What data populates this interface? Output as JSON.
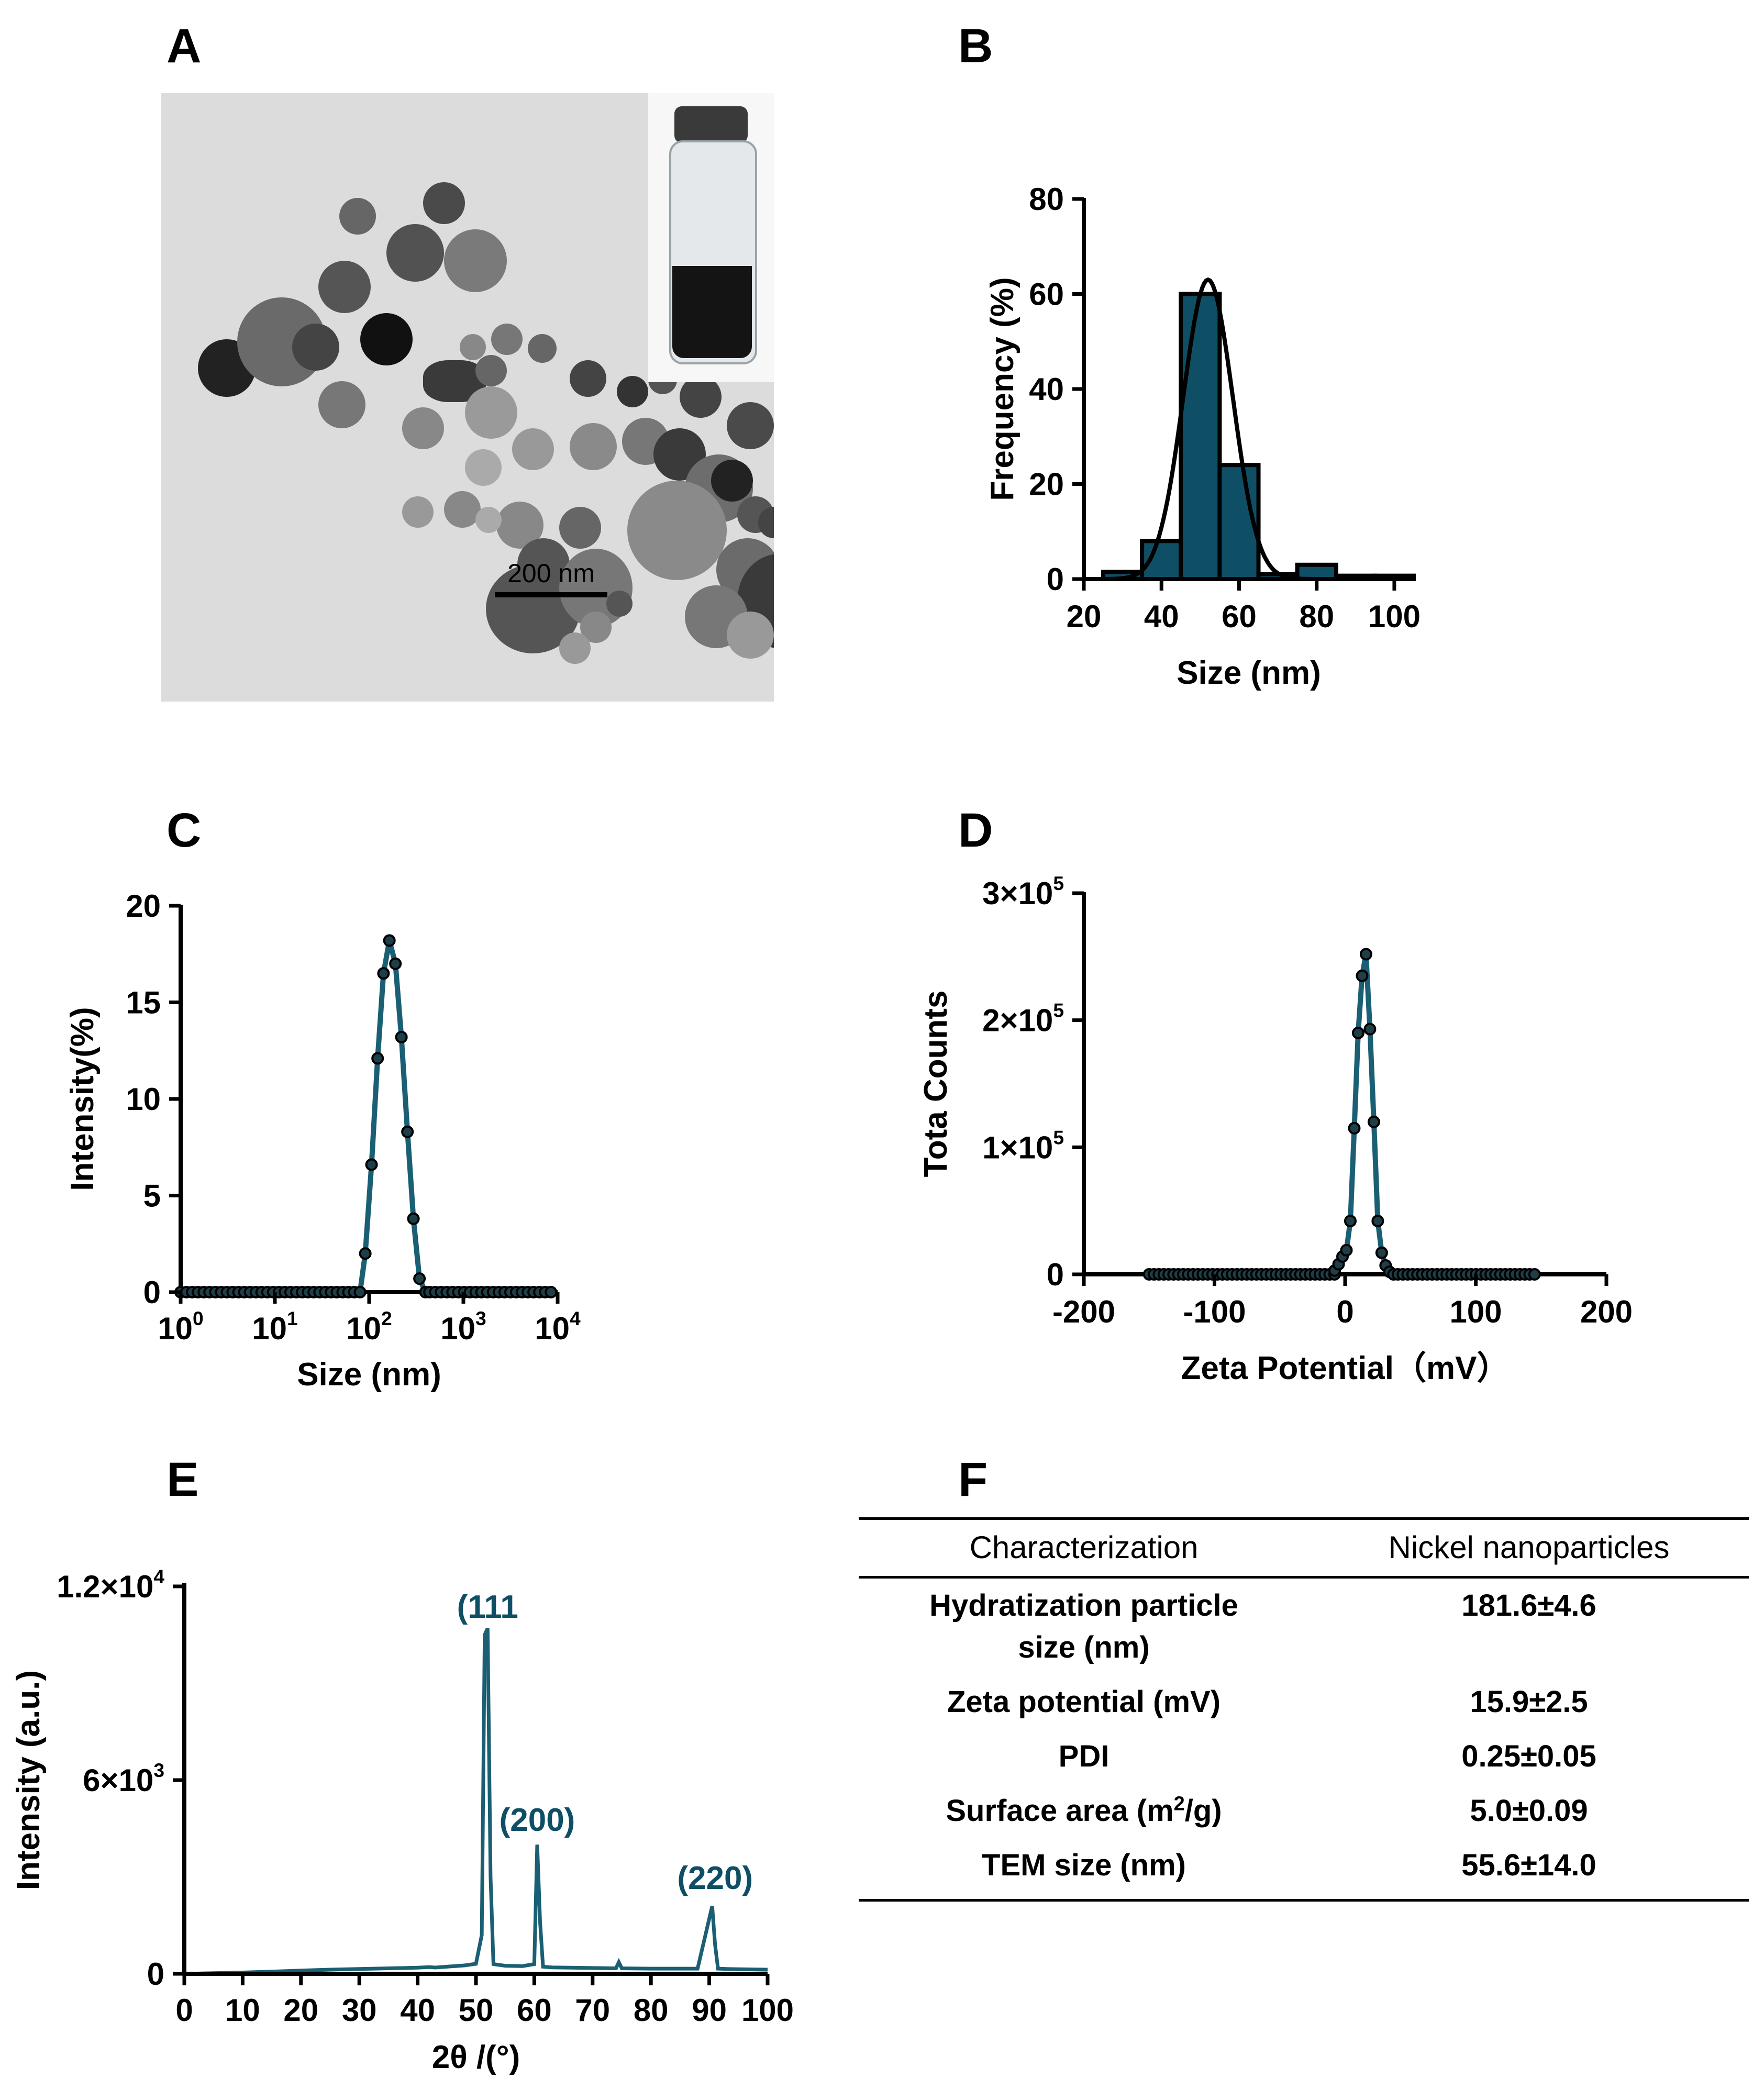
{
  "panels": {
    "a": "A",
    "b": "B",
    "c": "C",
    "d": "D",
    "e": "E",
    "f": "F"
  },
  "tem": {
    "scale_bar": "200 nm"
  },
  "colors": {
    "teal": "#0f4f66",
    "teal_line": "#1a5f74",
    "black": "#000000"
  },
  "chart_data": [
    {
      "id": "B",
      "type": "bar",
      "title": "",
      "xlabel": "Size (nm)",
      "ylabel": "Frequency (%)",
      "xlim": [
        20,
        105
      ],
      "ylim": [
        0,
        80
      ],
      "xticks": [
        20,
        40,
        60,
        80,
        100
      ],
      "yticks": [
        0,
        20,
        40,
        60,
        80
      ],
      "bins": [
        [
          25,
          35
        ],
        [
          35,
          45
        ],
        [
          45,
          55
        ],
        [
          55,
          65
        ],
        [
          65,
          75
        ],
        [
          75,
          85
        ],
        [
          85,
          95
        ],
        [
          95,
          105
        ]
      ],
      "values": [
        1.5,
        8,
        60,
        24,
        1,
        3,
        0.7,
        0.7
      ],
      "fit": {
        "type": "gaussian",
        "mean": 52,
        "sd": 6.4,
        "peak": 63
      }
    },
    {
      "id": "C",
      "type": "line",
      "xscale": "log",
      "xlabel": "Size (nm)",
      "ylabel": "Intensity(%)",
      "xlim": [
        1,
        10000
      ],
      "ylim": [
        0,
        20
      ],
      "yticks": [
        0,
        5,
        10,
        15,
        20
      ],
      "xtick_labels": [
        {
          "base": "10",
          "exp": "0"
        },
        {
          "base": "10",
          "exp": "1"
        },
        {
          "base": "10",
          "exp": "2"
        },
        {
          "base": "10",
          "exp": "3"
        },
        {
          "base": "10",
          "exp": "4"
        }
      ],
      "peak_x": [
        91,
        106,
        123,
        142,
        164,
        190,
        220,
        255,
        295,
        342,
        396
      ],
      "peak_y": [
        2,
        6.6,
        12.1,
        16.5,
        18.2,
        17,
        13.2,
        8.3,
        3.8,
        0.7,
        0
      ],
      "zero_points": {
        "count": 65,
        "x_min": 1,
        "x_max": 8500
      }
    },
    {
      "id": "D",
      "type": "line",
      "xlabel": "Zeta Potential（mV）",
      "ylabel": "Tota Counts",
      "xlim": [
        -200,
        200
      ],
      "ylim": [
        0,
        300000
      ],
      "xticks": [
        -200,
        -100,
        0,
        100,
        200
      ],
      "ytick_labels": [
        {
          "base": "0",
          "exp": ""
        },
        {
          "base": "1×10",
          "exp": "5"
        },
        {
          "base": "2×10",
          "exp": "5"
        },
        {
          "base": "3×10",
          "exp": "5"
        }
      ],
      "peak_x": [
        -8,
        -5,
        -2,
        1,
        4,
        7,
        10,
        13,
        16,
        19,
        22,
        25,
        28,
        31,
        34,
        37
      ],
      "peak_y": [
        3000,
        8000,
        14000,
        19000,
        42000,
        115000,
        190000,
        235000,
        252000,
        193000,
        120000,
        42000,
        17000,
        7000,
        2000,
        0
      ],
      "zero_points": {
        "count": 80,
        "x_min": -150,
        "x_max": 145
      }
    },
    {
      "id": "E",
      "type": "line",
      "xlabel": "2θ /(°)",
      "ylabel": "Intensity (a.u.)",
      "xlim": [
        0,
        100
      ],
      "ylim": [
        0,
        12000
      ],
      "xticks": [
        0,
        10,
        20,
        30,
        40,
        50,
        60,
        70,
        80,
        90,
        100
      ],
      "ytick_labels": [
        {
          "base": "0",
          "exp": ""
        },
        {
          "base": "6×10",
          "exp": "3"
        },
        {
          "base": "1.2×10",
          "exp": "4"
        }
      ],
      "x": [
        0,
        5,
        10,
        15,
        20,
        25,
        30,
        35,
        40,
        42,
        43,
        45,
        48,
        50,
        51,
        51.5,
        52,
        52.5,
        53,
        55,
        58,
        60,
        60.5,
        61,
        61.5,
        63,
        70,
        74,
        74.5,
        75,
        80,
        88,
        90.5,
        91,
        91.5,
        93,
        100
      ],
      "y": [
        0,
        20,
        40,
        70,
        100,
        130,
        150,
        170,
        190,
        210,
        195,
        220,
        260,
        310,
        1200,
        10500,
        10700,
        3000,
        300,
        250,
        240,
        300,
        4000,
        1600,
        220,
        200,
        180,
        170,
        360,
        170,
        160,
        160,
        2100,
        900,
        160,
        150,
        130
      ],
      "peak_labels": [
        {
          "text": "(111",
          "x": 52,
          "y": 10800
        },
        {
          "text": "(200)",
          "x": 60.5,
          "y": 4200
        },
        {
          "text": "(220)",
          "x": 91,
          "y": 2400
        }
      ]
    }
  ],
  "table": {
    "header": [
      "Characterization",
      "Nickel nanoparticles"
    ],
    "rows": [
      {
        "label_lines": [
          "Hydratization particle",
          "size (nm)"
        ],
        "value": "181.6±4.6"
      },
      {
        "label": "Zeta potential (mV)",
        "value": "15.9±2.5"
      },
      {
        "label": "PDI",
        "value": "0.25±0.05"
      },
      {
        "label_pre": "Surface area (m",
        "label_sup": "2",
        "label_post": "/g)",
        "value": "5.0±0.09"
      },
      {
        "label": "TEM size (nm)",
        "value": "55.6±14.0"
      }
    ]
  }
}
